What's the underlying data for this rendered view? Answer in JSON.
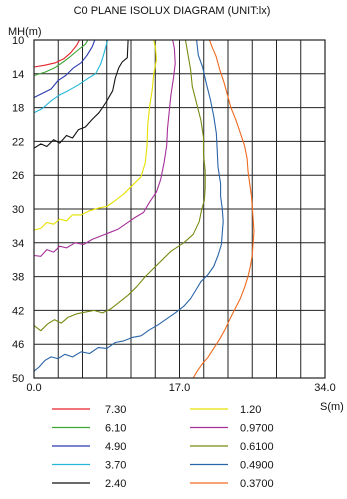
{
  "chart_data": {
    "type": "line",
    "title": "C0 PLANE ISOLUX DIAGRAM (UNIT:lx)",
    "ylabel": "MH(m)",
    "xlabel": "S(m)",
    "xlim": [
      0,
      34
    ],
    "ylim": [
      10,
      50
    ],
    "y_inverted": true,
    "grid": true,
    "x_ticks": [
      0,
      17,
      34
    ],
    "x_tick_labels": [
      "0.0",
      "17.0",
      "34.0"
    ],
    "y_ticks": [
      10,
      14,
      18,
      22,
      26,
      30,
      34,
      38,
      42,
      46,
      50
    ],
    "y_tick_labels": [
      "10",
      "14",
      "18",
      "22",
      "26",
      "30",
      "34",
      "38",
      "42",
      "46",
      "50"
    ],
    "legend_placement": "bottom",
    "series": [
      {
        "name": "7.30",
        "color": "#e8202a",
        "points": [
          [
            0,
            13.2
          ],
          [
            1.2,
            13.0
          ],
          [
            2.5,
            12.7
          ],
          [
            3.5,
            12.2
          ],
          [
            4.3,
            11.5
          ],
          [
            5.0,
            10.6
          ],
          [
            5.3,
            10
          ]
        ]
      },
      {
        "name": "6.10",
        "color": "#3fa535",
        "points": [
          [
            0,
            14.2
          ],
          [
            1.3,
            13.8
          ],
          [
            2.4,
            13.3
          ],
          [
            3.4,
            12.6
          ],
          [
            4.2,
            12.0
          ],
          [
            5.0,
            11.3
          ],
          [
            6.0,
            10.5
          ],
          [
            6.3,
            10
          ]
        ]
      },
      {
        "name": "4.90",
        "color": "#2a3bb0",
        "points": [
          [
            0,
            16.8
          ],
          [
            1.0,
            16.3
          ],
          [
            2.0,
            15.8
          ],
          [
            2.8,
            14.8
          ],
          [
            3.7,
            14.2
          ],
          [
            4.6,
            13.3
          ],
          [
            5.5,
            12.7
          ],
          [
            6.2,
            11.8
          ],
          [
            6.8,
            10.8
          ],
          [
            7.1,
            10
          ]
        ]
      },
      {
        "name": "3.70",
        "color": "#25b6d8",
        "points": [
          [
            0,
            18.6
          ],
          [
            1.0,
            18.1
          ],
          [
            2.0,
            17.2
          ],
          [
            3.0,
            16.5
          ],
          [
            4.0,
            16.0
          ],
          [
            5.2,
            15.3
          ],
          [
            6.2,
            14.6
          ],
          [
            7.2,
            14.0
          ],
          [
            7.8,
            12.8
          ],
          [
            8.2,
            11.5
          ],
          [
            8.6,
            10
          ]
        ]
      },
      {
        "name": "2.40",
        "color": "#111111",
        "points": [
          [
            0,
            22.8
          ],
          [
            0.8,
            22.3
          ],
          [
            1.5,
            22.6
          ],
          [
            2.3,
            21.8
          ],
          [
            3.0,
            22.2
          ],
          [
            3.8,
            21.3
          ],
          [
            4.5,
            21.6
          ],
          [
            5.2,
            20.6
          ],
          [
            6.0,
            20.3
          ],
          [
            6.8,
            19.4
          ],
          [
            7.6,
            18.6
          ],
          [
            8.4,
            17.4
          ],
          [
            9.2,
            16.0
          ],
          [
            9.5,
            14.5
          ],
          [
            9.9,
            13.3
          ],
          [
            10.3,
            12.6
          ],
          [
            10.9,
            12.1
          ],
          [
            11.0,
            10
          ]
        ]
      },
      {
        "name": "1.20",
        "color": "#e6e000",
        "points": [
          [
            0,
            32.5
          ],
          [
            0.8,
            32.3
          ],
          [
            1.5,
            31.6
          ],
          [
            2.3,
            31.8
          ],
          [
            3.0,
            31.2
          ],
          [
            3.8,
            31.4
          ],
          [
            4.5,
            30.7
          ],
          [
            5.5,
            30.7
          ],
          [
            6.5,
            30.2
          ],
          [
            7.5,
            29.9
          ],
          [
            8.5,
            29.7
          ],
          [
            9.5,
            29.0
          ],
          [
            10.5,
            28.2
          ],
          [
            11.5,
            27.2
          ],
          [
            12.5,
            26.2
          ],
          [
            13.0,
            24.5
          ],
          [
            13.2,
            22.5
          ],
          [
            13.3,
            20.0
          ],
          [
            13.5,
            18.0
          ],
          [
            13.8,
            16.0
          ],
          [
            14.0,
            14.0
          ],
          [
            14.3,
            12.3
          ],
          [
            14.2,
            11.0
          ],
          [
            14.0,
            10
          ]
        ]
      },
      {
        "name": "0.9700",
        "color": "#a5309a",
        "points": [
          [
            0,
            35.5
          ],
          [
            0.8,
            35.6
          ],
          [
            1.5,
            34.8
          ],
          [
            2.3,
            35.1
          ],
          [
            3.0,
            34.4
          ],
          [
            3.8,
            34.6
          ],
          [
            4.8,
            34.0
          ],
          [
            5.8,
            34.2
          ],
          [
            6.8,
            33.6
          ],
          [
            7.8,
            33.2
          ],
          [
            8.8,
            32.8
          ],
          [
            9.8,
            32.4
          ],
          [
            10.8,
            31.7
          ],
          [
            11.8,
            31.0
          ],
          [
            12.8,
            30.4
          ],
          [
            13.5,
            29.2
          ],
          [
            14.3,
            28.0
          ],
          [
            14.8,
            26.5
          ],
          [
            15.2,
            24.5
          ],
          [
            15.5,
            22.5
          ],
          [
            15.6,
            20.5
          ],
          [
            15.8,
            18.5
          ],
          [
            16.0,
            16.5
          ],
          [
            16.3,
            14.5
          ],
          [
            16.5,
            12.8
          ],
          [
            16.4,
            11.0
          ],
          [
            16.2,
            10
          ]
        ]
      },
      {
        "name": "0.6100",
        "color": "#7a8a12",
        "points": [
          [
            0,
            43.8
          ],
          [
            0.8,
            44.4
          ],
          [
            1.6,
            43.6
          ],
          [
            2.4,
            43.1
          ],
          [
            3.2,
            43.5
          ],
          [
            4.0,
            42.8
          ],
          [
            5.0,
            42.4
          ],
          [
            6.0,
            42.2
          ],
          [
            7.0,
            42.0
          ],
          [
            8.0,
            42.3
          ],
          [
            9.0,
            41.8
          ],
          [
            10.0,
            41.0
          ],
          [
            11.0,
            40.2
          ],
          [
            12.0,
            39.2
          ],
          [
            13.0,
            38.0
          ],
          [
            14.0,
            37.0
          ],
          [
            15.0,
            36.0
          ],
          [
            16.0,
            35.0
          ],
          [
            17.5,
            34.0
          ],
          [
            18.6,
            33.0
          ],
          [
            19.3,
            31.5
          ],
          [
            19.6,
            30.0
          ],
          [
            19.9,
            29.0
          ],
          [
            20.0,
            27.5
          ],
          [
            20.0,
            25.5
          ],
          [
            19.8,
            23.5
          ],
          [
            19.8,
            21.5
          ],
          [
            19.5,
            19.5
          ],
          [
            19.0,
            17.5
          ],
          [
            18.5,
            15.5
          ],
          [
            18.3,
            13.5
          ],
          [
            18.0,
            11.8
          ],
          [
            17.7,
            10
          ]
        ]
      },
      {
        "name": "0.4900",
        "color": "#2a64a8",
        "points": [
          [
            0,
            49.2
          ],
          [
            0.6,
            48.7
          ],
          [
            1.3,
            47.9
          ],
          [
            2.0,
            47.5
          ],
          [
            2.8,
            47.7
          ],
          [
            3.6,
            47.2
          ],
          [
            4.5,
            47.5
          ],
          [
            5.5,
            46.9
          ],
          [
            6.5,
            47.1
          ],
          [
            7.5,
            46.4
          ],
          [
            8.5,
            46.5
          ],
          [
            9.5,
            45.8
          ],
          [
            10.5,
            45.6
          ],
          [
            11.5,
            45.2
          ],
          [
            12.5,
            45.0
          ],
          [
            13.5,
            44.3
          ],
          [
            14.5,
            43.7
          ],
          [
            15.5,
            43.0
          ],
          [
            16.5,
            42.3
          ],
          [
            17.5,
            41.5
          ],
          [
            18.3,
            40.6
          ],
          [
            18.9,
            39.6
          ],
          [
            19.5,
            38.6
          ],
          [
            20.3,
            37.8
          ],
          [
            21.0,
            36.8
          ],
          [
            21.5,
            35.5
          ],
          [
            21.9,
            34.2
          ],
          [
            22.0,
            32.8
          ],
          [
            22.1,
            31.5
          ],
          [
            22.0,
            30.0
          ],
          [
            21.8,
            28.5
          ],
          [
            21.8,
            27.0
          ],
          [
            21.5,
            25.0
          ],
          [
            21.4,
            23.0
          ],
          [
            21.3,
            21.0
          ],
          [
            21.0,
            19.0
          ],
          [
            20.6,
            17.0
          ],
          [
            20.1,
            15.0
          ],
          [
            19.7,
            13.2
          ],
          [
            19.2,
            11.8
          ],
          [
            19.0,
            10
          ]
        ]
      },
      {
        "name": "0.3700",
        "color": "#f06a1d",
        "points": [
          [
            18.6,
            50
          ],
          [
            19.0,
            49.3
          ],
          [
            19.6,
            48.4
          ],
          [
            20.3,
            47.6
          ],
          [
            21.0,
            46.5
          ],
          [
            21.7,
            45.4
          ],
          [
            22.3,
            44.3
          ],
          [
            22.9,
            43.0
          ],
          [
            23.5,
            41.8
          ],
          [
            24.1,
            40.6
          ],
          [
            24.6,
            39.3
          ],
          [
            25.0,
            38.0
          ],
          [
            25.3,
            36.7
          ],
          [
            25.5,
            35.4
          ],
          [
            25.6,
            34.0
          ],
          [
            25.7,
            32.6
          ],
          [
            25.6,
            31.2
          ],
          [
            25.5,
            29.8
          ],
          [
            25.4,
            28.4
          ],
          [
            25.2,
            27.0
          ],
          [
            25.0,
            25.5
          ],
          [
            24.9,
            24.0
          ],
          [
            24.6,
            22.5
          ],
          [
            24.1,
            21.0
          ],
          [
            23.6,
            19.5
          ],
          [
            23.0,
            18.0
          ],
          [
            22.6,
            16.5
          ],
          [
            22.2,
            15.0
          ],
          [
            21.7,
            13.5
          ],
          [
            21.3,
            12.0
          ],
          [
            20.8,
            10.8
          ],
          [
            20.5,
            10
          ]
        ]
      }
    ]
  }
}
